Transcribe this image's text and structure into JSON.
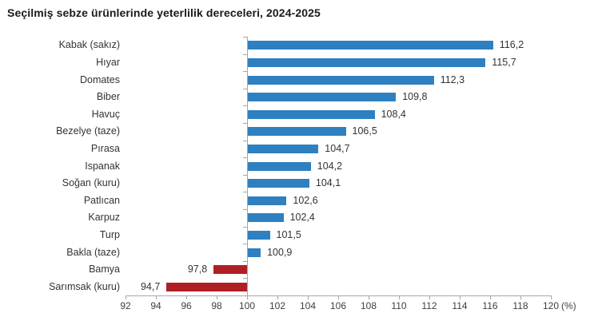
{
  "title": "Seçilmiş sebze ürünlerinde yeterlilik dereceleri, 2024-2025",
  "chart_data": {
    "type": "bar",
    "orientation": "horizontal",
    "title": "Seçilmiş sebze ürünlerinde yeterlilik dereceleri, 2024-2025",
    "categories": [
      "Kabak (sakız)",
      "Hıyar",
      "Domates",
      "Biber",
      "Havuç",
      "Bezelye (taze)",
      "Pırasa",
      "Ispanak",
      "Soğan (kuru)",
      "Patlıcan",
      "Karpuz",
      "Turp",
      "Bakla (taze)",
      "Bamya",
      "Sarımsak (kuru)"
    ],
    "values": [
      116.2,
      115.7,
      112.3,
      109.8,
      108.4,
      106.5,
      104.7,
      104.2,
      104.1,
      102.6,
      102.4,
      101.5,
      100.9,
      97.8,
      94.7
    ],
    "value_labels": [
      "116,2",
      "115,7",
      "112,3",
      "109,8",
      "108,4",
      "106,5",
      "104,7",
      "104,2",
      "104,1",
      "102,6",
      "102,4",
      "101,5",
      "100,9",
      "97,8",
      "94,7"
    ],
    "baseline": 100,
    "xlim": [
      92,
      120
    ],
    "xticks": [
      92,
      94,
      96,
      98,
      100,
      102,
      104,
      106,
      108,
      110,
      112,
      114,
      116,
      118,
      120
    ],
    "xaxis_unit": "(%)",
    "xlabel": "",
    "ylabel": "",
    "grid": false,
    "legend": false,
    "colors": {
      "above_baseline": "#2e80c0",
      "below_baseline": "#b01f24",
      "axis": "#a6a6a6",
      "label_text": "#333333",
      "tick_text": "#404040",
      "title_text": "#1a1a1a"
    }
  }
}
